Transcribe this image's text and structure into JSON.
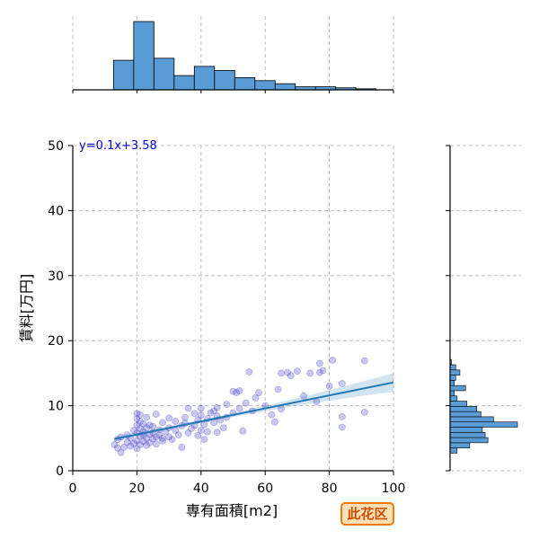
{
  "chart_data": {
    "type": "scatter",
    "xlabel": "専有面積[m2]",
    "ylabel": "賃料[万円]",
    "xlim": [
      0,
      100
    ],
    "ylim": [
      0,
      50
    ],
    "xticks": [
      0,
      20,
      40,
      60,
      80,
      100
    ],
    "yticks": [
      0,
      10,
      20,
      30,
      40,
      50
    ],
    "grid": true,
    "annotation": "y=0.1x+3.58",
    "regression": {
      "slope": 0.1,
      "intercept": 3.58,
      "x_range": [
        13,
        100
      ]
    },
    "colors": {
      "points": "#3d36c4",
      "line": "#1f77b4",
      "bars": "#5b9bd5",
      "annotation": "#0000cc"
    },
    "points": [
      [
        13,
        4.0
      ],
      [
        14,
        3.5
      ],
      [
        14,
        4.8
      ],
      [
        15,
        2.8
      ],
      [
        15,
        5.2
      ],
      [
        16,
        3.6
      ],
      [
        17,
        4.4
      ],
      [
        17,
        5.5
      ],
      [
        18,
        3.8
      ],
      [
        18,
        5.0
      ],
      [
        19,
        4.2
      ],
      [
        19,
        6.2
      ],
      [
        20,
        3.4
      ],
      [
        20,
        4.6
      ],
      [
        20,
        5.8
      ],
      [
        20,
        7.0
      ],
      [
        20,
        8.0
      ],
      [
        20,
        8.8
      ],
      [
        21,
        4.0
      ],
      [
        21,
        5.3
      ],
      [
        21,
        6.5
      ],
      [
        21,
        7.6
      ],
      [
        21,
        8.6
      ],
      [
        22,
        4.5
      ],
      [
        22,
        5.5
      ],
      [
        22,
        6.0
      ],
      [
        22,
        7.2
      ],
      [
        23,
        3.9
      ],
      [
        23,
        5.0
      ],
      [
        23,
        6.6
      ],
      [
        23,
        8.2
      ],
      [
        24,
        4.3
      ],
      [
        24,
        5.6
      ],
      [
        24,
        7.0
      ],
      [
        25,
        4.9
      ],
      [
        25,
        5.9
      ],
      [
        25,
        6.8
      ],
      [
        26,
        4.1
      ],
      [
        26,
        5.2
      ],
      [
        26,
        8.7
      ],
      [
        27,
        5.5
      ],
      [
        27,
        6.3
      ],
      [
        28,
        4.6
      ],
      [
        28,
        5.0
      ],
      [
        28,
        7.4
      ],
      [
        29,
        6.0
      ],
      [
        30,
        5.2
      ],
      [
        30,
        6.6
      ],
      [
        30,
        8.1
      ],
      [
        31,
        4.8
      ],
      [
        32,
        6.2
      ],
      [
        32,
        7.6
      ],
      [
        33,
        5.5
      ],
      [
        34,
        3.6
      ],
      [
        34,
        6.9
      ],
      [
        35,
        7.3
      ],
      [
        35,
        8.2
      ],
      [
        36,
        5.8
      ],
      [
        36,
        9.6
      ],
      [
        37,
        6.5
      ],
      [
        38,
        7.0
      ],
      [
        38,
        8.8
      ],
      [
        39,
        5.4
      ],
      [
        39,
        7.8
      ],
      [
        40,
        6.2
      ],
      [
        40,
        8.5
      ],
      [
        40,
        9.6
      ],
      [
        41,
        7.1
      ],
      [
        41,
        4.8
      ],
      [
        42,
        8.0
      ],
      [
        42,
        6.0
      ],
      [
        43,
        8.9
      ],
      [
        44,
        7.4
      ],
      [
        44,
        9.2
      ],
      [
        45,
        5.9
      ],
      [
        45,
        8.4
      ],
      [
        45,
        9.7
      ],
      [
        46,
        7.8
      ],
      [
        47,
        6.6
      ],
      [
        48,
        8.2
      ],
      [
        48,
        10.2
      ],
      [
        50,
        8.9
      ],
      [
        50,
        12.2
      ],
      [
        51,
        12.0
      ],
      [
        52,
        9.6
      ],
      [
        52,
        12.3
      ],
      [
        53,
        6.1
      ],
      [
        54,
        10.4
      ],
      [
        55,
        15.2
      ],
      [
        56,
        9.2
      ],
      [
        57,
        11.2
      ],
      [
        58,
        12.0
      ],
      [
        60,
        10.0
      ],
      [
        62,
        8.6
      ],
      [
        63,
        7.5
      ],
      [
        64,
        12.5
      ],
      [
        65,
        9.5
      ],
      [
        65,
        15.0
      ],
      [
        67,
        15.1
      ],
      [
        68,
        14.6
      ],
      [
        70,
        15.3
      ],
      [
        72,
        11.5
      ],
      [
        74,
        15.0
      ],
      [
        76,
        10.6
      ],
      [
        77,
        15.1
      ],
      [
        77,
        16.5
      ],
      [
        78,
        15.4
      ],
      [
        80,
        13.0
      ],
      [
        81,
        17.0
      ],
      [
        84,
        8.3
      ],
      [
        84,
        6.7
      ],
      [
        84,
        13.4
      ],
      [
        91,
        9.0
      ],
      [
        91,
        16.9
      ]
    ],
    "top_hist": {
      "bin_edges": [
        12.7,
        19.0,
        25.3,
        31.6,
        37.9,
        44.2,
        50.5,
        56.8,
        63.1,
        69.4,
        75.7,
        82.0,
        88.3,
        94.6,
        100.9
      ],
      "counts": [
        29,
        67,
        31,
        14,
        23,
        19,
        12,
        9,
        6,
        3,
        3,
        2,
        1,
        0
      ]
    },
    "right_hist": {
      "bin_edges": [
        2.7,
        3.5,
        4.3,
        5.1,
        5.9,
        6.7,
        7.5,
        8.3,
        9.1,
        9.9,
        10.7,
        11.5,
        12.3,
        13.1,
        13.9,
        14.7,
        15.5,
        16.3,
        17.1
      ],
      "counts": [
        5,
        14,
        27,
        25,
        23,
        48,
        31,
        22,
        19,
        12,
        5,
        3,
        11,
        3,
        4,
        7,
        4,
        1
      ]
    }
  },
  "ward_badge": "此花区"
}
